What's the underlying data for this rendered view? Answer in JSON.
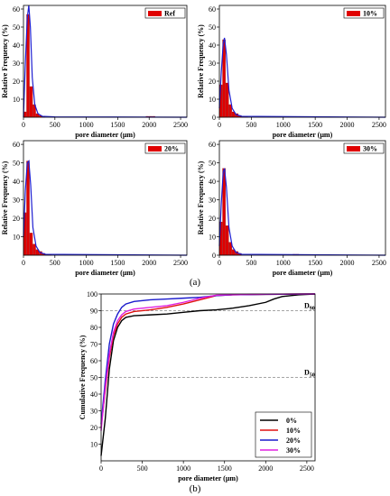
{
  "captions": {
    "a": "(a)",
    "b": "(b)"
  },
  "chart_data": [
    {
      "type": "bar",
      "panel": "top-left",
      "legend": "Ref",
      "legend_position": "top-right",
      "xlabel": "pore diameter (µm)",
      "ylabel": "Relative Frequency (%)",
      "xlim": [
        0,
        2600
      ],
      "ylim": [
        0,
        62
      ],
      "xticks": [
        0,
        500,
        1000,
        1500,
        2000,
        2500
      ],
      "yticks": [
        10,
        20,
        30,
        40,
        50,
        60
      ],
      "bar_color": "#e00000",
      "curve_color": "#1f1fd1",
      "bins": [
        {
          "x": 0,
          "v": 3
        },
        {
          "x": 50,
          "v": 57
        },
        {
          "x": 100,
          "v": 17
        },
        {
          "x": 150,
          "v": 7
        },
        {
          "x": 200,
          "v": 2
        },
        {
          "x": 250,
          "v": 1
        },
        {
          "x": 300,
          "v": 0.5
        },
        {
          "x": 1950,
          "v": 0.5
        },
        {
          "x": 2000,
          "v": 0.5
        },
        {
          "x": 2050,
          "v": 0.5
        }
      ],
      "curve": [
        [
          0,
          0
        ],
        [
          30,
          30
        ],
        [
          60,
          55
        ],
        [
          85,
          62
        ],
        [
          110,
          50
        ],
        [
          140,
          22
        ],
        [
          180,
          7
        ],
        [
          230,
          2
        ],
        [
          300,
          0.5
        ],
        [
          500,
          0.2
        ],
        [
          2600,
          0
        ]
      ]
    },
    {
      "type": "bar",
      "panel": "top-right",
      "legend": "10%",
      "legend_position": "top-right",
      "xlabel": "pore diameter (µm)",
      "ylabel": "Relative Frequency (%)",
      "xlim": [
        0,
        2600
      ],
      "ylim": [
        0,
        62
      ],
      "xticks": [
        0,
        500,
        1000,
        1500,
        2000,
        2500
      ],
      "yticks": [
        0,
        10,
        20,
        30,
        40,
        50,
        60
      ],
      "bar_color": "#e00000",
      "curve_color": "#1f1fd1",
      "bins": [
        {
          "x": 0,
          "v": 18
        },
        {
          "x": 50,
          "v": 43
        },
        {
          "x": 100,
          "v": 19
        },
        {
          "x": 150,
          "v": 7
        },
        {
          "x": 200,
          "v": 3
        },
        {
          "x": 250,
          "v": 2
        },
        {
          "x": 300,
          "v": 1
        },
        {
          "x": 350,
          "v": 0.5
        },
        {
          "x": 400,
          "v": 0.5
        }
      ],
      "curve": [
        [
          0,
          5
        ],
        [
          30,
          25
        ],
        [
          60,
          41
        ],
        [
          80,
          44
        ],
        [
          110,
          35
        ],
        [
          150,
          15
        ],
        [
          200,
          5
        ],
        [
          260,
          1.5
        ],
        [
          350,
          0.5
        ],
        [
          2600,
          0
        ]
      ]
    },
    {
      "type": "bar",
      "panel": "bottom-left",
      "legend": "20%",
      "legend_position": "top-right",
      "xlabel": "pore diameter (µm)",
      "ylabel": "Relative Frequency (%)",
      "xlim": [
        0,
        2600
      ],
      "ylim": [
        0,
        62
      ],
      "xticks": [
        0,
        500,
        1000,
        1500,
        2000,
        2500
      ],
      "yticks": [
        10,
        20,
        30,
        40,
        50,
        60
      ],
      "bar_color": "#e00000",
      "curve_color": "#1f1fd1",
      "bins": [
        {
          "x": 0,
          "v": 23
        },
        {
          "x": 50,
          "v": 51
        },
        {
          "x": 100,
          "v": 12
        },
        {
          "x": 150,
          "v": 6
        },
        {
          "x": 200,
          "v": 3
        },
        {
          "x": 250,
          "v": 2
        },
        {
          "x": 300,
          "v": 1
        },
        {
          "x": 350,
          "v": 0.5
        },
        {
          "x": 400,
          "v": 0.5
        }
      ],
      "curve": [
        [
          0,
          10
        ],
        [
          30,
          35
        ],
        [
          60,
          50
        ],
        [
          85,
          51
        ],
        [
          115,
          38
        ],
        [
          150,
          15
        ],
        [
          200,
          5
        ],
        [
          260,
          1.5
        ],
        [
          350,
          0.5
        ],
        [
          2600,
          0
        ]
      ]
    },
    {
      "type": "bar",
      "panel": "bottom-right",
      "legend": "30%",
      "legend_position": "top-right",
      "xlabel": "pore diameter (µm)",
      "ylabel": "Relative Frequency (%)",
      "xlim": [
        0,
        2600
      ],
      "ylim": [
        0,
        62
      ],
      "xticks": [
        0,
        500,
        1000,
        1500,
        2000,
        2500
      ],
      "yticks": [
        0,
        10,
        20,
        30,
        40,
        50,
        60
      ],
      "bar_color": "#e00000",
      "curve_color": "#1f1fd1",
      "bins": [
        {
          "x": 0,
          "v": 18
        },
        {
          "x": 50,
          "v": 47
        },
        {
          "x": 100,
          "v": 16
        },
        {
          "x": 150,
          "v": 7
        },
        {
          "x": 200,
          "v": 3
        },
        {
          "x": 250,
          "v": 2
        },
        {
          "x": 300,
          "v": 1
        },
        {
          "x": 1150,
          "v": 0.5
        },
        {
          "x": 1200,
          "v": 0.5
        }
      ],
      "curve": [
        [
          0,
          5
        ],
        [
          30,
          28
        ],
        [
          60,
          45
        ],
        [
          80,
          47
        ],
        [
          110,
          37
        ],
        [
          150,
          15
        ],
        [
          200,
          5
        ],
        [
          260,
          1.5
        ],
        [
          350,
          0.5
        ],
        [
          2600,
          0
        ]
      ]
    },
    {
      "type": "line",
      "panel": "bottom",
      "xlabel": "pore diameter (µm)",
      "ylabel": "Cumulative Frequency (%)",
      "xlim": [
        0,
        2600
      ],
      "ylim": [
        0,
        100
      ],
      "xticks": [
        0,
        500,
        1000,
        1500,
        2000,
        2500
      ],
      "yticks": [
        10,
        20,
        30,
        40,
        50,
        60,
        70,
        80,
        90,
        100
      ],
      "legend_position": "bottom-right",
      "reference_lines": [
        {
          "y": 90,
          "label": "D",
          "sub": "90"
        },
        {
          "y": 50,
          "label": "D",
          "sub": "50"
        }
      ],
      "series": [
        {
          "name": "0%",
          "color": "#000000",
          "points": [
            [
              0,
              3
            ],
            [
              50,
              25
            ],
            [
              100,
              55
            ],
            [
              150,
              72
            ],
            [
              200,
              80
            ],
            [
              250,
              84
            ],
            [
              300,
              86
            ],
            [
              400,
              87
            ],
            [
              600,
              87.5
            ],
            [
              800,
              88
            ],
            [
              1000,
              89
            ],
            [
              1200,
              90
            ],
            [
              1400,
              90.5
            ],
            [
              1600,
              91.5
            ],
            [
              1800,
              93
            ],
            [
              2000,
              95
            ],
            [
              2100,
              97
            ],
            [
              2200,
              98.5
            ],
            [
              2400,
              99.5
            ],
            [
              2600,
              100
            ]
          ]
        },
        {
          "name": "10%",
          "color": "#e01010",
          "points": [
            [
              0,
              20
            ],
            [
              50,
              42
            ],
            [
              100,
              62
            ],
            [
              150,
              75
            ],
            [
              200,
              82
            ],
            [
              250,
              86
            ],
            [
              300,
              88
            ],
            [
              400,
              89.5
            ],
            [
              600,
              90.5
            ],
            [
              800,
              92
            ],
            [
              1000,
              94
            ],
            [
              1200,
              96.5
            ],
            [
              1400,
              99
            ],
            [
              1600,
              99.5
            ],
            [
              2000,
              99.8
            ],
            [
              2600,
              100
            ]
          ]
        },
        {
          "name": "20%",
          "color": "#1a1acc",
          "points": [
            [
              0,
              22
            ],
            [
              50,
              48
            ],
            [
              100,
              70
            ],
            [
              150,
              82
            ],
            [
              200,
              88
            ],
            [
              250,
              92
            ],
            [
              300,
              94
            ],
            [
              400,
              95.5
            ],
            [
              600,
              96.5
            ],
            [
              800,
              97
            ],
            [
              1000,
              97.5
            ],
            [
              1200,
              98
            ],
            [
              1400,
              99
            ],
            [
              1600,
              99.5
            ],
            [
              2000,
              99.8
            ],
            [
              2600,
              100
            ]
          ]
        },
        {
          "name": "30%",
          "color": "#e020e0",
          "points": [
            [
              0,
              18
            ],
            [
              50,
              44
            ],
            [
              100,
              64
            ],
            [
              150,
              77
            ],
            [
              200,
              84
            ],
            [
              250,
              87.5
            ],
            [
              300,
              89.5
            ],
            [
              400,
              91
            ],
            [
              600,
              92
            ],
            [
              800,
              93
            ],
            [
              1000,
              95
            ],
            [
              1200,
              97.5
            ],
            [
              1400,
              99.3
            ],
            [
              1600,
              99.6
            ],
            [
              2000,
              99.9
            ],
            [
              2600,
              100
            ]
          ]
        }
      ]
    }
  ]
}
